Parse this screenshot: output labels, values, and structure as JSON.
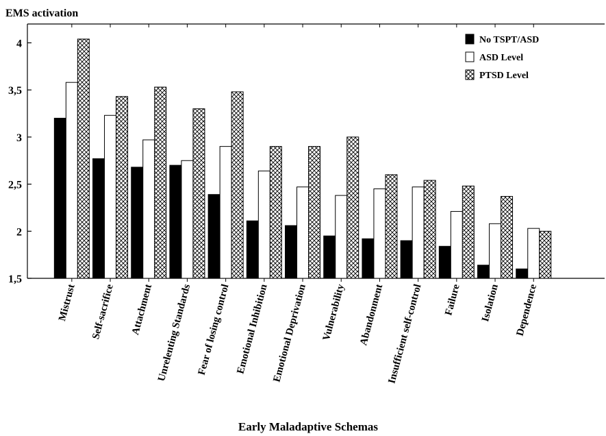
{
  "chart_data": {
    "type": "bar",
    "ylabel": "EMS activation",
    "xlabel": "Early Maladaptive Schemas",
    "ylim": [
      1.5,
      4.2
    ],
    "yticks": [
      "1,5",
      "2",
      "2,5",
      "3",
      "3,5",
      "4"
    ],
    "ytick_values": [
      1.5,
      2,
      2.5,
      3,
      3.5,
      4
    ],
    "grid": false,
    "legend_position": "top-right",
    "categories": [
      "Mistrust",
      "Self-sacrifice",
      "Attachment",
      "Unrelenting Standards",
      "Fear of losing control",
      "Emotional Inhibition",
      "Emotional Deprivation",
      "Vulnerability",
      "Abandonment",
      "Insufficient self-control",
      "Failure",
      "Isolation",
      "Dependence"
    ],
    "series": [
      {
        "name": "No TSPT/ASD",
        "fill": "solid-black",
        "values": [
          3.2,
          2.77,
          2.68,
          2.7,
          2.39,
          2.11,
          2.06,
          1.95,
          1.92,
          1.9,
          1.84,
          1.64,
          1.6
        ]
      },
      {
        "name": "ASD Level",
        "fill": "white",
        "values": [
          3.58,
          3.23,
          2.97,
          2.75,
          2.9,
          2.64,
          2.47,
          2.38,
          2.45,
          2.47,
          2.21,
          2.08,
          2.03
        ]
      },
      {
        "name": "PTSD Level",
        "fill": "crosshatch",
        "values": [
          4.04,
          3.43,
          3.53,
          3.3,
          3.48,
          2.9,
          2.9,
          3.0,
          2.6,
          2.54,
          2.48,
          2.37,
          2.0
        ]
      }
    ]
  }
}
